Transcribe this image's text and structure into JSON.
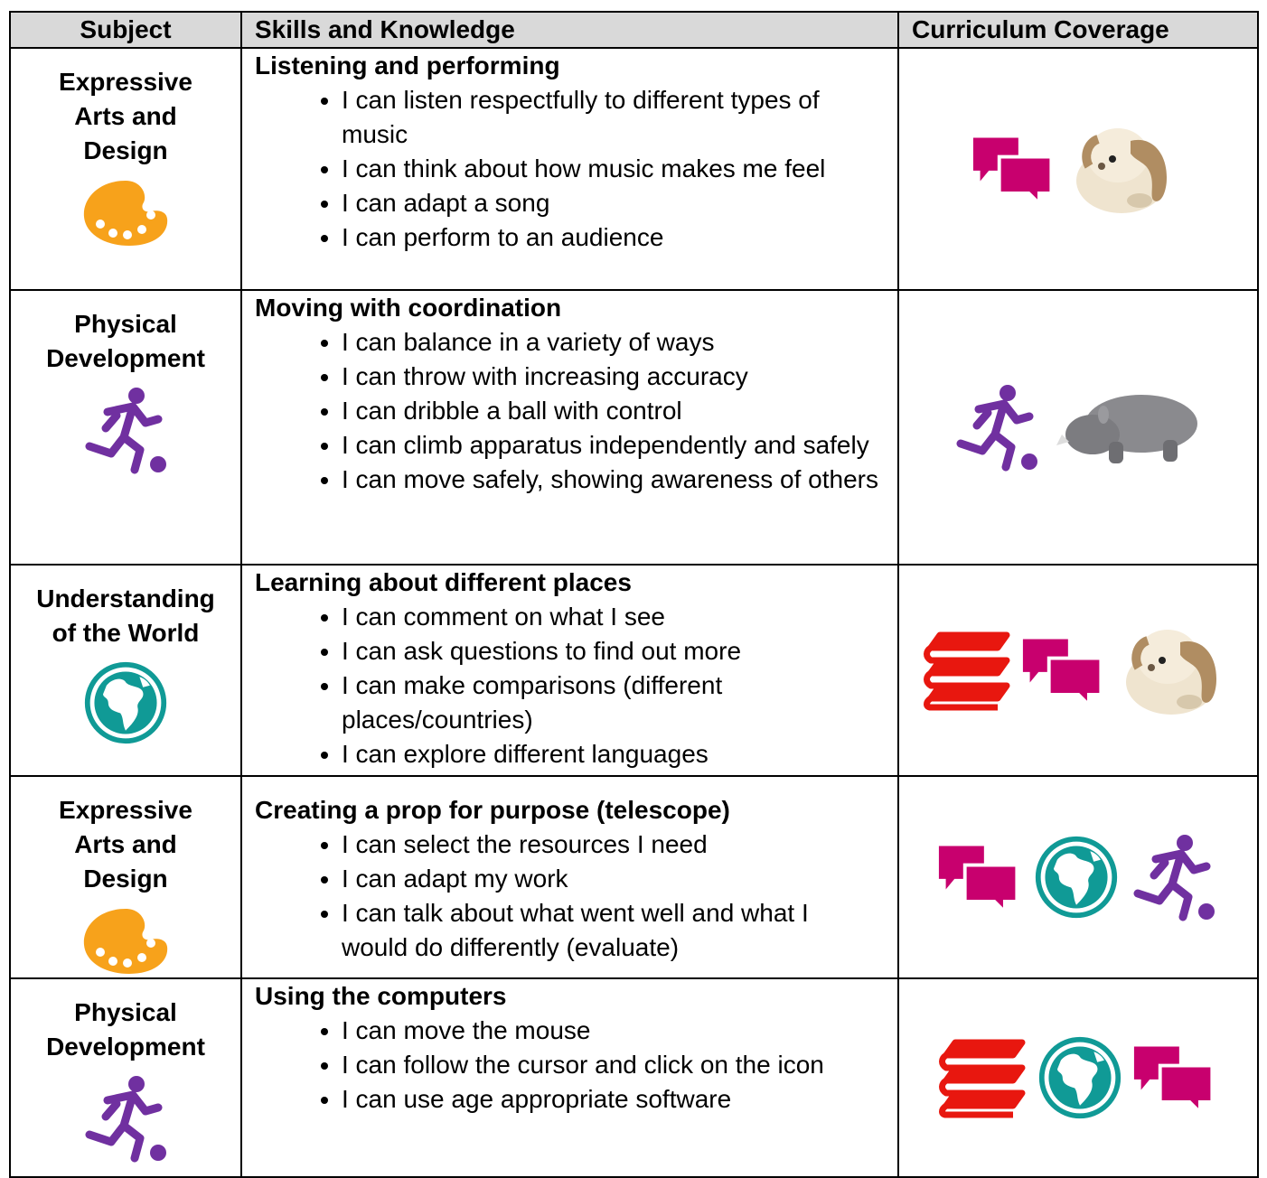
{
  "table": {
    "headers": [
      "Subject",
      "Skills and Knowledge",
      "Curriculum Coverage"
    ],
    "rows": [
      {
        "subject": "Expressive Arts and Design",
        "heading": "Listening and performing",
        "items": [
          "I can listen respectfully to different types of music",
          "I can think about how music makes me feel",
          "I can adapt a song",
          "I can perform to an audience"
        ]
      },
      {
        "subject": "Physical Development",
        "heading": "Moving with coordination",
        "items": [
          "I can balance in a variety of ways",
          "I can throw with increasing accuracy",
          "I can dribble a ball with control",
          "I can climb apparatus independently and safely",
          "I can move safely, showing awareness of others"
        ]
      },
      {
        "subject": "Understanding of the World",
        "heading": "Learning about different places",
        "items": [
          "I can comment on what I see",
          "I can ask questions to find out more",
          "I can make comparisons (different places/countries)",
          "I can explore different languages"
        ]
      },
      {
        "subject": "Expressive Arts and Design",
        "heading": "Creating a prop for purpose (telescope)",
        "items": [
          "I can select the resources I need",
          "I can adapt my work",
          "I can talk about what went well and what I would do differently (evaluate)"
        ]
      },
      {
        "subject": "Physical Development",
        "heading": "Using the computers",
        "items": [
          "I can move the mouse",
          "I can follow the cursor and click on the icon",
          "I can use age appropriate software"
        ]
      }
    ]
  }
}
